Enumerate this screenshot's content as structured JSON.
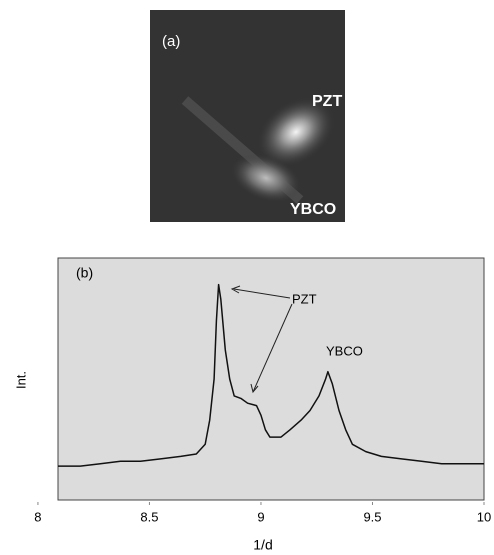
{
  "image": {
    "panel_label": "(a)",
    "labels": [
      "PZT",
      "YBCO"
    ]
  },
  "chart_data": {
    "type": "line",
    "panel_label": "(b)",
    "x_label": "1/d",
    "y_label": "Int.",
    "annotations": [
      "PZT",
      "YBCO"
    ],
    "color": "#111111",
    "x": [
      8.09,
      8.19,
      8.28,
      8.37,
      8.46,
      8.55,
      8.64,
      8.71,
      8.75,
      8.77,
      8.79,
      8.8,
      8.81,
      8.82,
      8.84,
      8.86,
      8.88,
      8.91,
      8.94,
      8.98,
      9.0,
      9.02,
      9.04,
      9.09,
      9.13,
      9.18,
      9.22,
      9.26,
      9.29,
      9.3,
      9.32,
      9.35,
      9.38,
      9.41,
      9.47,
      9.54,
      9.63,
      9.72,
      9.81,
      9.9,
      10.0
    ],
    "values": [
      0.14,
      0.14,
      0.15,
      0.16,
      0.16,
      0.17,
      0.18,
      0.19,
      0.23,
      0.33,
      0.5,
      0.74,
      0.89,
      0.83,
      0.62,
      0.5,
      0.43,
      0.42,
      0.4,
      0.39,
      0.35,
      0.29,
      0.26,
      0.26,
      0.29,
      0.33,
      0.37,
      0.43,
      0.5,
      0.53,
      0.48,
      0.37,
      0.29,
      0.23,
      0.2,
      0.18,
      0.17,
      0.16,
      0.15,
      0.15,
      0.15
    ],
    "xlim": [
      8.09,
      10
    ],
    "ylim": [
      0,
      1
    ],
    "xticks": [
      8,
      8.5,
      9,
      9.5,
      10
    ]
  }
}
